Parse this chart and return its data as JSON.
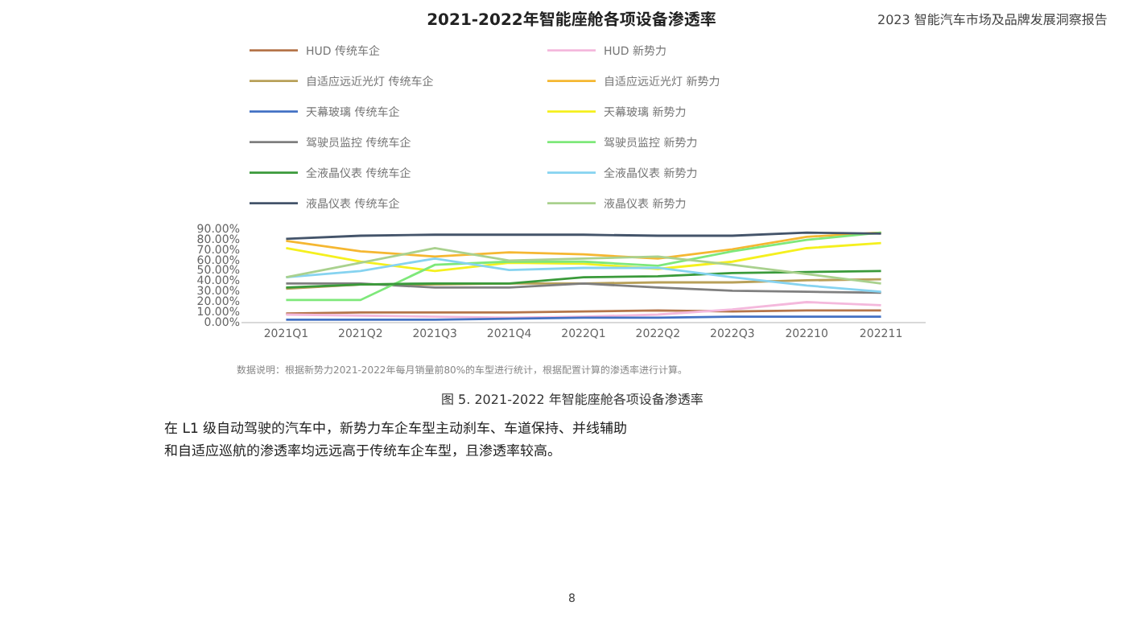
{
  "chart_data": {
    "type": "line",
    "title": "2021-2022年智能座舱各项设备渗透率",
    "categories": [
      "2021Q1",
      "2021Q2",
      "2021Q3",
      "2021Q4",
      "2022Q1",
      "2022Q2",
      "2022Q3",
      "202210",
      "202211"
    ],
    "series": [
      {
        "name": "HUD 传统车企",
        "color": "#b5754a",
        "values": [
          8,
          9,
          9,
          9,
          10,
          11,
          10,
          11,
          11
        ]
      },
      {
        "name": "HUD 新势力",
        "color": "#f4b8dc",
        "values": [
          7,
          6,
          5,
          4,
          5,
          7,
          12,
          19,
          16
        ]
      },
      {
        "name": "自适应远近光灯 传统车企",
        "color": "#b8a058",
        "values": [
          32,
          36,
          36,
          37,
          37,
          38,
          38,
          40,
          41
        ]
      },
      {
        "name": "自适应远近光灯 新势力",
        "color": "#f5b731",
        "values": [
          78,
          68,
          63,
          67,
          65,
          61,
          70,
          82,
          86
        ]
      },
      {
        "name": "天幕玻璃 传统车企",
        "color": "#4472c4",
        "values": [
          2,
          2,
          2,
          3,
          4,
          4,
          5,
          5,
          5
        ]
      },
      {
        "name": "天幕玻璃 新势力",
        "color": "#f5f01e",
        "values": [
          71,
          58,
          49,
          57,
          56,
          51,
          58,
          71,
          76
        ]
      },
      {
        "name": "驾驶员监控 传统车企",
        "color": "#7f7f7f",
        "values": [
          37,
          37,
          33,
          33,
          37,
          33,
          30,
          29,
          28
        ]
      },
      {
        "name": "驾驶员监控 新势力",
        "color": "#7ee87a",
        "values": [
          21,
          21,
          55,
          58,
          58,
          54,
          68,
          79,
          86
        ]
      },
      {
        "name": "全液晶仪表 传统车企",
        "color": "#3a9a3a",
        "values": [
          33,
          36,
          37,
          37,
          43,
          44,
          47,
          48,
          49
        ]
      },
      {
        "name": "全液晶仪表 新势力",
        "color": "#86d3f0",
        "values": [
          43,
          49,
          61,
          50,
          52,
          52,
          43,
          35,
          29
        ]
      },
      {
        "name": "液晶仪表 传统车企",
        "color": "#44546a",
        "values": [
          80,
          83,
          84,
          84,
          84,
          83,
          83,
          86,
          85
        ]
      },
      {
        "name": "液晶仪表 新势力",
        "color": "#a9d18e",
        "values": [
          43,
          57,
          71,
          59,
          61,
          63,
          55,
          46,
          37
        ]
      }
    ],
    "ylim": [
      0,
      90
    ],
    "yticks": [
      {
        "value": 0,
        "label": "0.00%"
      },
      {
        "value": 10,
        "label": "10.00%"
      },
      {
        "value": 20,
        "label": "20.00%"
      },
      {
        "value": 30,
        "label": "30.00%"
      },
      {
        "value": 40,
        "label": "40.00%"
      },
      {
        "value": 50,
        "label": "50.00%"
      },
      {
        "value": 60,
        "label": "60.00%"
      },
      {
        "value": 70,
        "label": "70.00%"
      },
      {
        "value": 80,
        "label": "80.00%"
      },
      {
        "value": 90,
        "label": "90.00%"
      }
    ],
    "legend": "top",
    "marker": "none",
    "line_style": "solid",
    "grid": false,
    "annotations": [
      "2023 智能汽车市场及品牌发展洞察报告",
      "数据说明：根据新势力2021-2022年每月销量前80%的车型进行统计，根据配置计算的渗透率进行计算。",
      "图 5. 2021-2022 年智能座舱各项设备渗透率",
      "在 L1 级自动驾驶的汽车中，新势力车企车型主动刹车、车道保持、并线辅助",
      "和自适应巡航的渗透率均远远高于传统车企车型，且渗透率较高。",
      "8"
    ]
  }
}
